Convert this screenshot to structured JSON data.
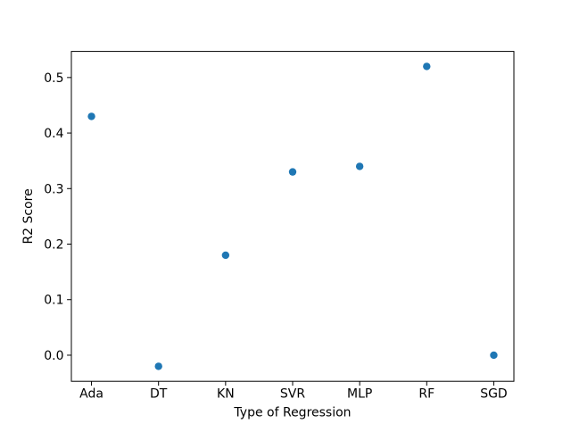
{
  "figure": {
    "background_color": "#ffffff",
    "frame_color": "#000000"
  },
  "chart_data": {
    "type": "scatter",
    "title": "",
    "xlabel": "Type of Regression",
    "ylabel": "R2 Score",
    "categories": [
      "Ada",
      "DT",
      "KN",
      "SVR",
      "MLP",
      "RF",
      "SGD"
    ],
    "values": [
      0.43,
      -0.02,
      0.18,
      0.33,
      0.34,
      0.52,
      0.0
    ],
    "yticks": [
      0.0,
      0.1,
      0.2,
      0.3,
      0.4,
      0.5
    ],
    "ytick_labels": [
      "0.0",
      "0.1",
      "0.2",
      "0.3",
      "0.4",
      "0.5"
    ],
    "xlim": [
      -0.3,
      6.3
    ],
    "ylim": [
      -0.047,
      0.547
    ],
    "grid": false,
    "legend": null,
    "marker_color": "#1f77b4",
    "marker_radius_px": 4.2
  }
}
